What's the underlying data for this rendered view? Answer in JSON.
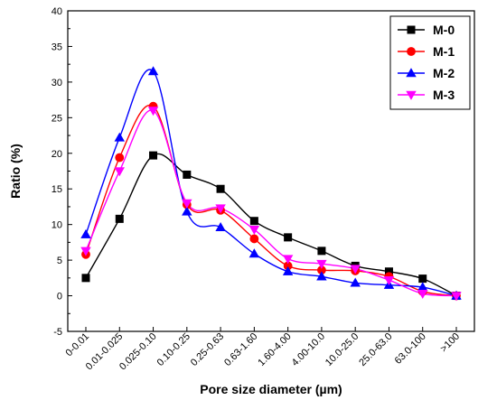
{
  "chart_data": {
    "type": "line",
    "categories": [
      "0-0.01",
      "0.01-0.025",
      "0.025-0.10",
      "0.10-0.25",
      "0.25-0.63",
      "0.63-1.60",
      "1.60-4.00",
      "4.00-10.0",
      "10.0-25.0",
      "25.0-63.0",
      "63.0-100",
      ">100"
    ],
    "series": [
      {
        "name": "M-0",
        "color": "#000000",
        "marker": "square",
        "values": [
          2.5,
          10.8,
          19.7,
          17.0,
          15.0,
          10.5,
          8.2,
          6.3,
          4.2,
          3.4,
          2.4,
          0
        ]
      },
      {
        "name": "M-1",
        "color": "#ff0000",
        "marker": "circle",
        "values": [
          5.8,
          19.4,
          26.6,
          12.8,
          12.0,
          8.0,
          4.2,
          3.6,
          3.5,
          2.7,
          0.6,
          0
        ]
      },
      {
        "name": "M-2",
        "color": "#0000ff",
        "marker": "triangle-up",
        "values": [
          8.6,
          22.2,
          31.5,
          11.8,
          9.6,
          5.9,
          3.4,
          2.7,
          1.8,
          1.5,
          1.2,
          0
        ]
      },
      {
        "name": "M-3",
        "color": "#ff00ff",
        "marker": "triangle-down",
        "values": [
          6.3,
          17.5,
          26.0,
          13.0,
          12.3,
          9.3,
          5.2,
          4.5,
          3.8,
          2.2,
          0.3,
          0
        ]
      }
    ],
    "xlabel": "Pore size diameter (µm)",
    "ylabel": "Ratio (%)",
    "ylim": [
      -5,
      40
    ],
    "yticks": [
      -5,
      0,
      5,
      10,
      15,
      20,
      25,
      30,
      35,
      40
    ],
    "legend_position": "top-right",
    "grid": false
  }
}
